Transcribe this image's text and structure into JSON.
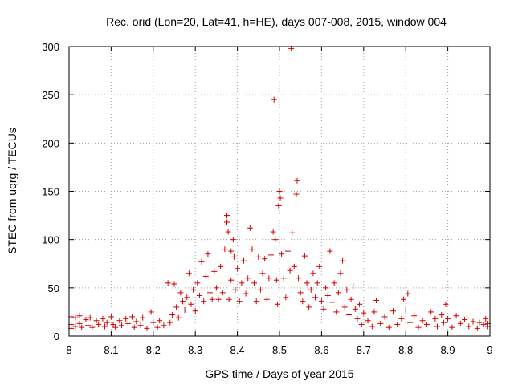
{
  "chart_data": {
    "type": "scatter",
    "title": "Rec. orid (Lon=20, Lat=41, h=HE), days 007-008, 2015, window 004",
    "xlabel": "GPS time / Days of year 2015",
    "ylabel": "STEC from uqrg / TECUs",
    "xlim": [
      8,
      9
    ],
    "ylim": [
      0,
      300
    ],
    "xticks": [
      8,
      8.1,
      8.2,
      8.3,
      8.4,
      8.5,
      8.6,
      8.7,
      8.8,
      8.9,
      9
    ],
    "xtick_labels": [
      "8",
      "8.1",
      "8.2",
      "8.3",
      "8.4",
      "8.5",
      "8.6",
      "8.7",
      "8.8",
      "8.9",
      "9"
    ],
    "yticks": [
      0,
      50,
      100,
      150,
      200,
      250,
      300
    ],
    "ytick_labels": [
      "0",
      "50",
      "100",
      "150",
      "200",
      "250",
      "300"
    ],
    "grid": true,
    "marker": "+",
    "color": "#d00000",
    "series": [
      {
        "name": "STEC",
        "points": [
          [
            8.005,
            20
          ],
          [
            8.005,
            12
          ],
          [
            8.005,
            8
          ],
          [
            8.015,
            19
          ],
          [
            8.015,
            10
          ],
          [
            8.025,
            21
          ],
          [
            8.025,
            13
          ],
          [
            8.03,
            9
          ],
          [
            8.04,
            17
          ],
          [
            8.045,
            11
          ],
          [
            8.05,
            19
          ],
          [
            8.055,
            9
          ],
          [
            8.065,
            16
          ],
          [
            8.07,
            12
          ],
          [
            8.08,
            18
          ],
          [
            8.085,
            10
          ],
          [
            8.09,
            14
          ],
          [
            8.1,
            20
          ],
          [
            8.105,
            12
          ],
          [
            8.11,
            9
          ],
          [
            8.12,
            16
          ],
          [
            8.125,
            11
          ],
          [
            8.135,
            18
          ],
          [
            8.14,
            13
          ],
          [
            8.15,
            20
          ],
          [
            8.155,
            9
          ],
          [
            8.16,
            15
          ],
          [
            8.17,
            11
          ],
          [
            8.175,
            19
          ],
          [
            8.185,
            8
          ],
          [
            8.195,
            25
          ],
          [
            8.2,
            14
          ],
          [
            8.21,
            9
          ],
          [
            8.215,
            16
          ],
          [
            8.225,
            11
          ],
          [
            8.235,
            55
          ],
          [
            8.24,
            14
          ],
          [
            8.245,
            22
          ],
          [
            8.25,
            54
          ],
          [
            8.255,
            30
          ],
          [
            8.26,
            19
          ],
          [
            8.265,
            45
          ],
          [
            8.27,
            36
          ],
          [
            8.275,
            27
          ],
          [
            8.28,
            40
          ],
          [
            8.285,
            65
          ],
          [
            8.29,
            33
          ],
          [
            8.295,
            48
          ],
          [
            8.3,
            26
          ],
          [
            8.305,
            55
          ],
          [
            8.31,
            42
          ],
          [
            8.315,
            77
          ],
          [
            8.32,
            36
          ],
          [
            8.325,
            62
          ],
          [
            8.33,
            85
          ],
          [
            8.335,
            45
          ],
          [
            8.34,
            38
          ],
          [
            8.345,
            67
          ],
          [
            8.35,
            50
          ],
          [
            8.355,
            38
          ],
          [
            8.36,
            72
          ],
          [
            8.365,
            45
          ],
          [
            8.37,
            90
          ],
          [
            8.375,
            125
          ],
          [
            8.375,
            118
          ],
          [
            8.378,
            108
          ],
          [
            8.38,
            38
          ],
          [
            8.385,
            88
          ],
          [
            8.385,
            58
          ],
          [
            8.39,
            100
          ],
          [
            8.392,
            82
          ],
          [
            8.395,
            48
          ],
          [
            8.4,
            70
          ],
          [
            8.405,
            36
          ],
          [
            8.41,
            55
          ],
          [
            8.415,
            78
          ],
          [
            8.42,
            44
          ],
          [
            8.425,
            60
          ],
          [
            8.43,
            112
          ],
          [
            8.435,
            90
          ],
          [
            8.44,
            55
          ],
          [
            8.445,
            36
          ],
          [
            8.45,
            82
          ],
          [
            8.455,
            48
          ],
          [
            8.46,
            65
          ],
          [
            8.465,
            80
          ],
          [
            8.47,
            38
          ],
          [
            8.475,
            60
          ],
          [
            8.48,
            84
          ],
          [
            8.485,
            108
          ],
          [
            8.487,
            245
          ],
          [
            8.49,
            100
          ],
          [
            8.493,
            58
          ],
          [
            8.495,
            33
          ],
          [
            8.498,
            135
          ],
          [
            8.5,
            150
          ],
          [
            8.502,
            143
          ],
          [
            8.505,
            85
          ],
          [
            8.51,
            60
          ],
          [
            8.515,
            40
          ],
          [
            8.52,
            88
          ],
          [
            8.525,
            68
          ],
          [
            8.528,
            298
          ],
          [
            8.53,
            107
          ],
          [
            8.535,
            72
          ],
          [
            8.54,
            147
          ],
          [
            8.542,
            161
          ],
          [
            8.545,
            60
          ],
          [
            8.55,
            45
          ],
          [
            8.555,
            36
          ],
          [
            8.56,
            83
          ],
          [
            8.565,
            55
          ],
          [
            8.57,
            30
          ],
          [
            8.575,
            48
          ],
          [
            8.58,
            65
          ],
          [
            8.585,
            40
          ],
          [
            8.59,
            55
          ],
          [
            8.595,
            72
          ],
          [
            8.6,
            36
          ],
          [
            8.605,
            28
          ],
          [
            8.61,
            50
          ],
          [
            8.615,
            42
          ],
          [
            8.62,
            88
          ],
          [
            8.625,
            35
          ],
          [
            8.63,
            55
          ],
          [
            8.635,
            25
          ],
          [
            8.64,
            45
          ],
          [
            8.645,
            65
          ],
          [
            8.65,
            78
          ],
          [
            8.655,
            30
          ],
          [
            8.66,
            48
          ],
          [
            8.665,
            22
          ],
          [
            8.67,
            38
          ],
          [
            8.675,
            52
          ],
          [
            8.68,
            28
          ],
          [
            8.685,
            18
          ],
          [
            8.69,
            33
          ],
          [
            8.695,
            12
          ],
          [
            8.7,
            24
          ],
          [
            8.71,
            16
          ],
          [
            8.72,
            10
          ],
          [
            8.725,
            25
          ],
          [
            8.73,
            37
          ],
          [
            8.74,
            13
          ],
          [
            8.75,
            20
          ],
          [
            8.76,
            9
          ],
          [
            8.77,
            26
          ],
          [
            8.78,
            12
          ],
          [
            8.79,
            18
          ],
          [
            8.795,
            38
          ],
          [
            8.8,
            27
          ],
          [
            8.805,
            44
          ],
          [
            8.81,
            14
          ],
          [
            8.82,
            21
          ],
          [
            8.83,
            9
          ],
          [
            8.84,
            16
          ],
          [
            8.85,
            12
          ],
          [
            8.86,
            25
          ],
          [
            8.87,
            18
          ],
          [
            8.875,
            10
          ],
          [
            8.885,
            22
          ],
          [
            8.89,
            14
          ],
          [
            8.895,
            33
          ],
          [
            8.9,
            18
          ],
          [
            8.91,
            9
          ],
          [
            8.92,
            21
          ],
          [
            8.93,
            13
          ],
          [
            8.94,
            17
          ],
          [
            8.95,
            10
          ],
          [
            8.96,
            15
          ],
          [
            8.97,
            8
          ],
          [
            8.975,
            14
          ],
          [
            8.985,
            12
          ],
          [
            8.99,
            18
          ],
          [
            8.995,
            10
          ],
          [
            8.995,
            13
          ]
        ]
      }
    ]
  }
}
